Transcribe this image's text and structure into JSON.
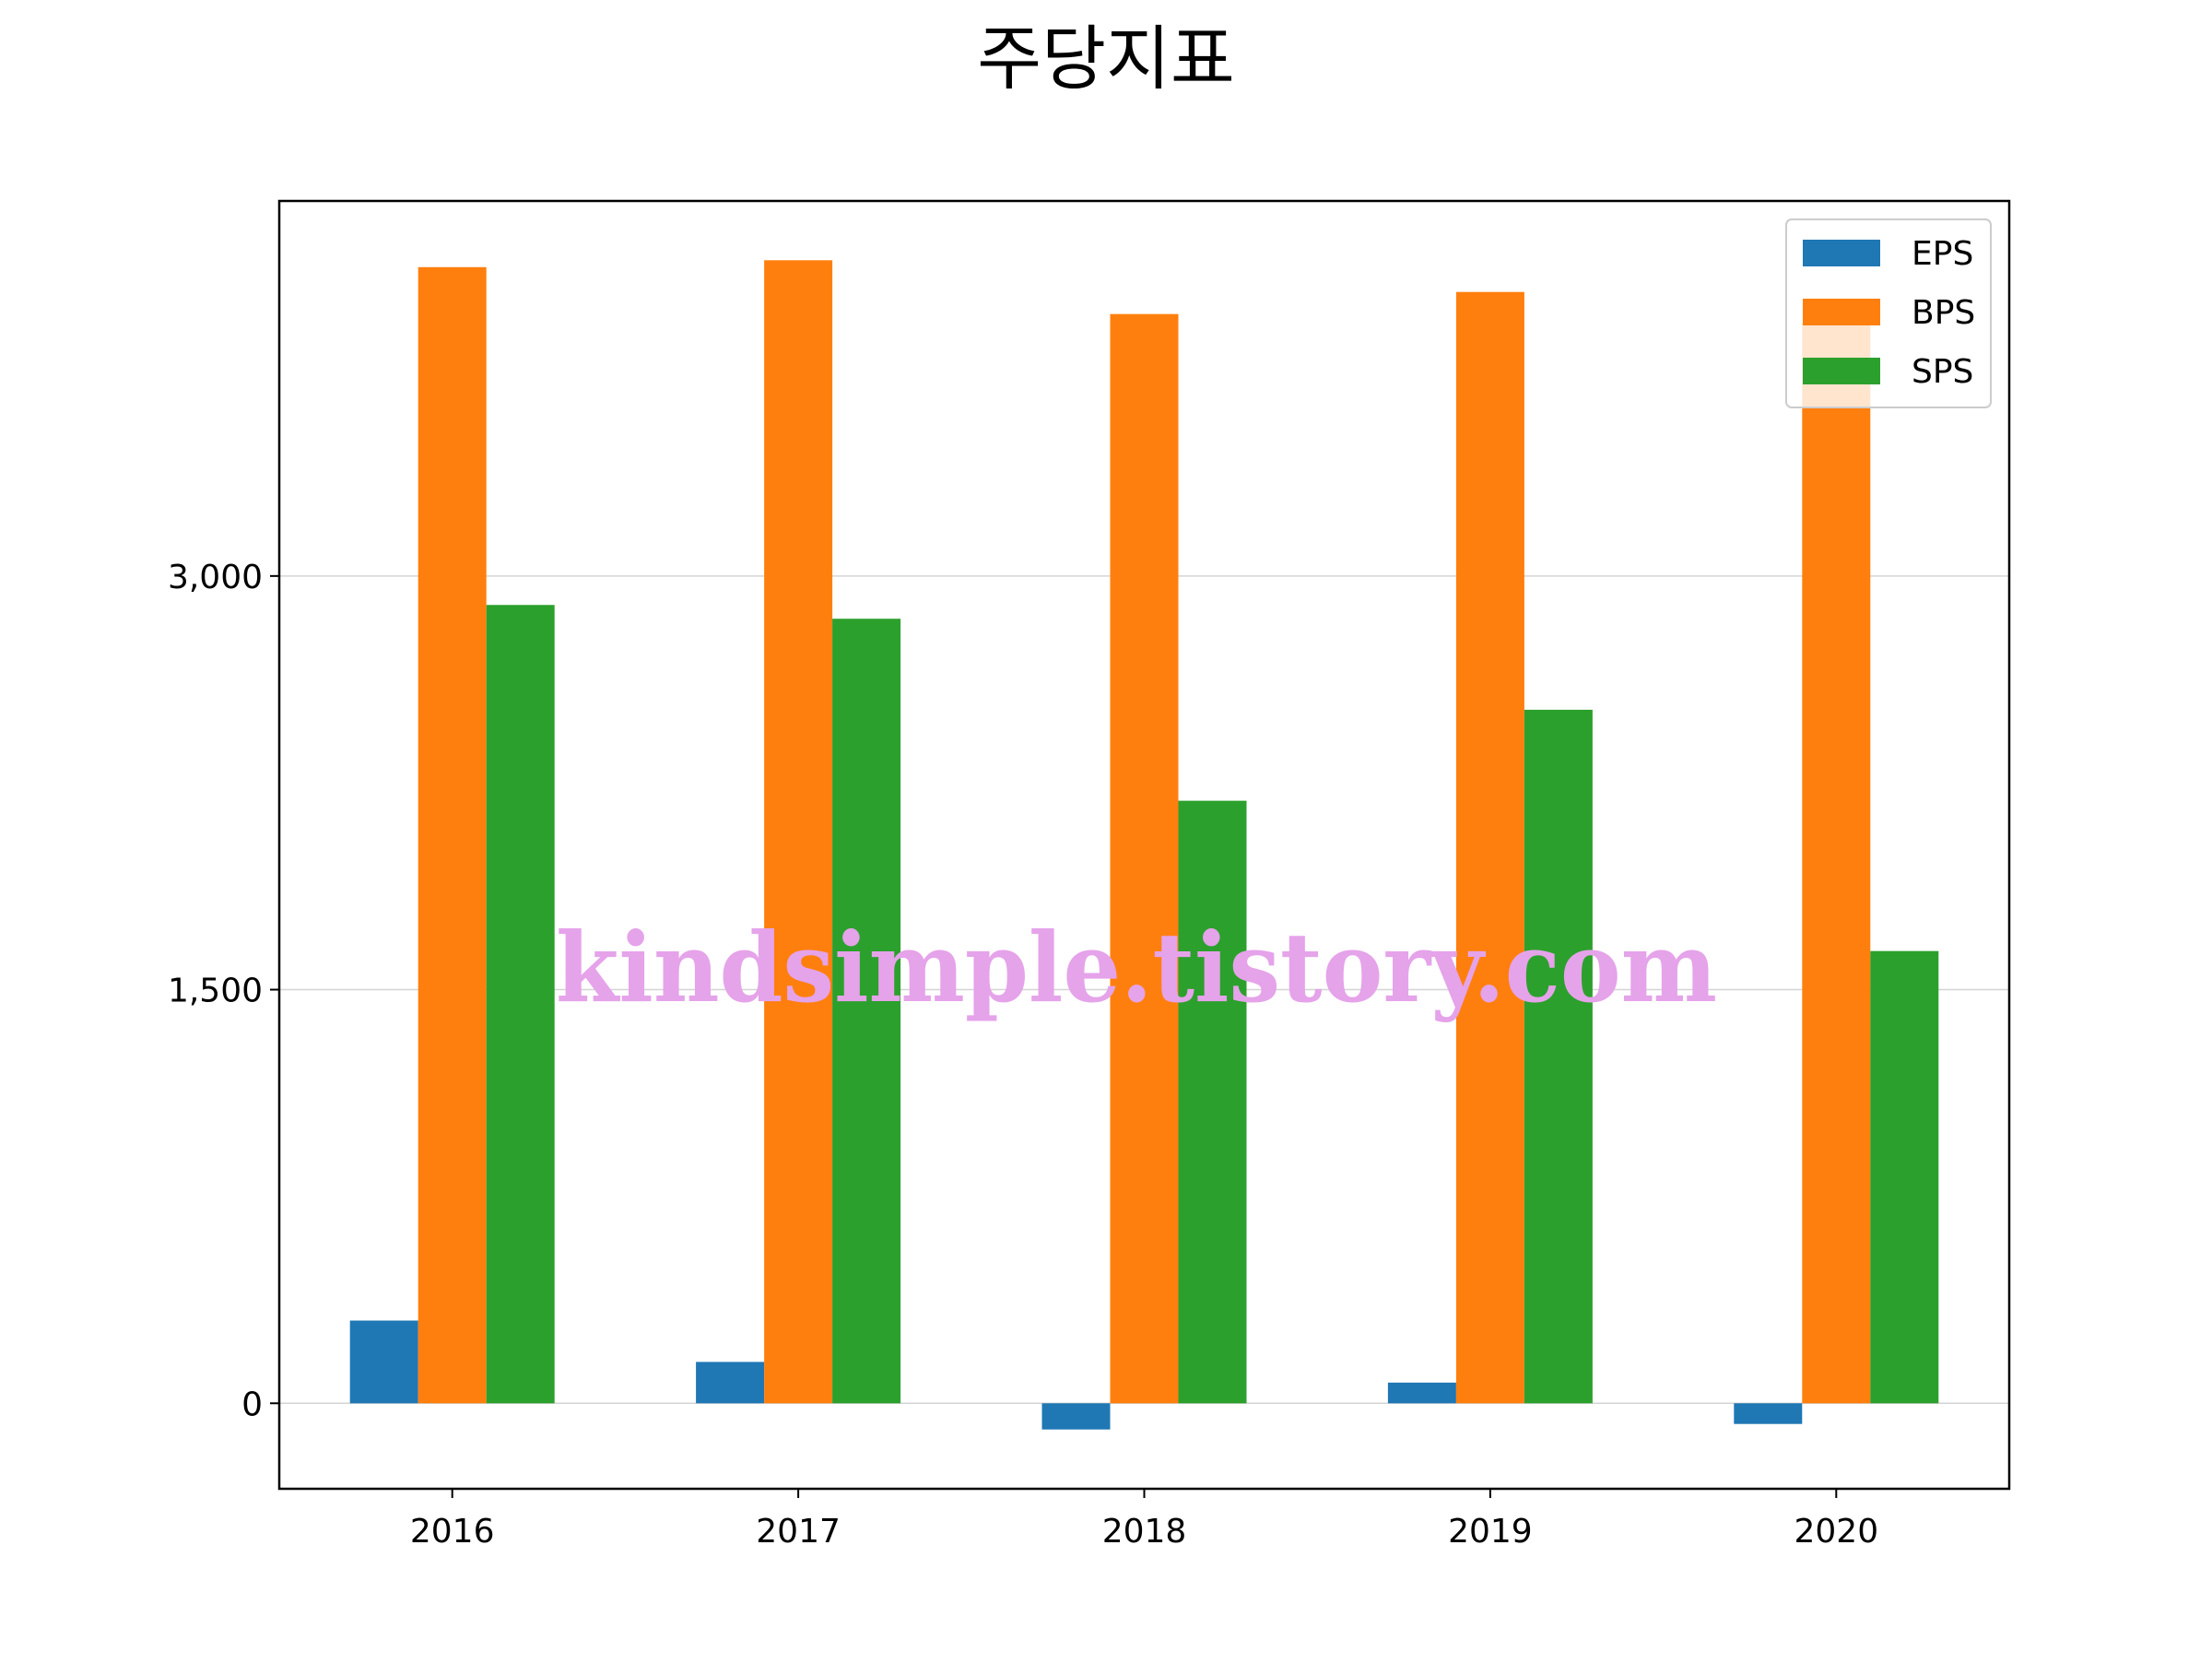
{
  "chart_data": {
    "type": "bar",
    "title": "주당지표",
    "xlabel": "",
    "ylabel": "",
    "categories": [
      "2016",
      "2017",
      "2018",
      "2019",
      "2020"
    ],
    "series": [
      {
        "name": "EPS",
        "color": "#1f77b4",
        "values": [
          300,
          150,
          -95,
          75,
          -75
        ]
      },
      {
        "name": "BPS",
        "color": "#ff7f0e",
        "values": [
          4120,
          4145,
          3950,
          4030,
          3920
        ]
      },
      {
        "name": "SPS",
        "color": "#2ca02c",
        "values": [
          2895,
          2845,
          2185,
          2515,
          1640
        ]
      }
    ],
    "ylim": [
      -310,
      4360
    ],
    "yticks": [
      0,
      1500,
      3000
    ],
    "ytick_labels": [
      "0",
      "1,500",
      "3,000"
    ],
    "grid": "y",
    "legend_position": "top-right",
    "watermark": "kindsimple.tistory.com"
  }
}
